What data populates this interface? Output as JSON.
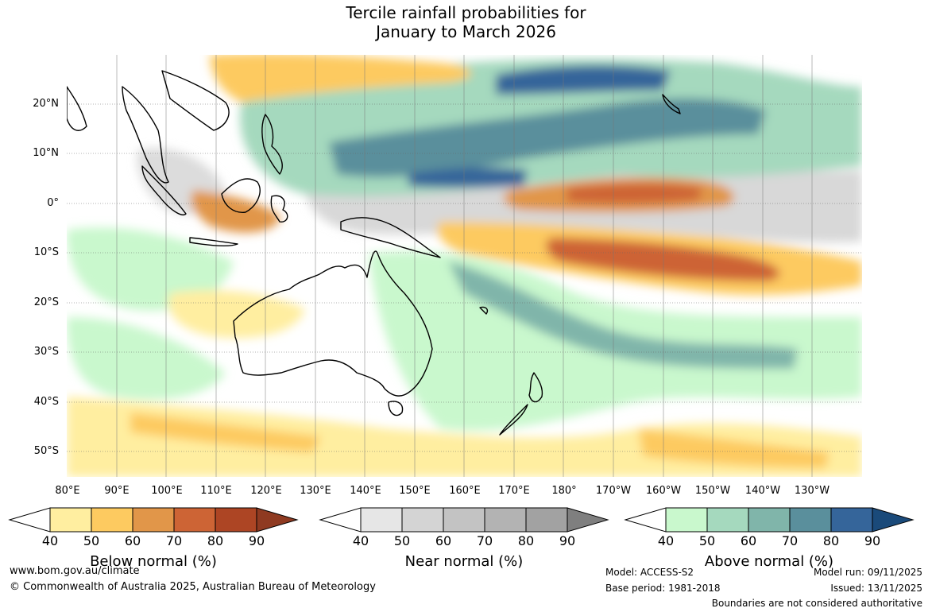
{
  "title": {
    "line1": "Tercile rainfall probabilities for",
    "line2": "January to March 2026"
  },
  "map": {
    "lat_labels": [
      "20°N",
      "10°N",
      "0°",
      "10°S",
      "20°S",
      "30°S",
      "40°S",
      "50°S"
    ],
    "lon_labels": [
      "80°E",
      "90°E",
      "100°E",
      "110°E",
      "120°E",
      "130°E",
      "140°E",
      "150°E",
      "160°E",
      "170°E",
      "180°",
      "170°W",
      "160°W",
      "150°W",
      "140°W",
      "130°W"
    ],
    "lat_range": [
      -55,
      30
    ],
    "lon_range": [
      80,
      240
    ]
  },
  "colorbars": {
    "below": {
      "title": "Below normal (%)",
      "ticks": [
        "40",
        "50",
        "60",
        "70",
        "80",
        "90"
      ],
      "colors": [
        "#ffeea0",
        "#fdca60",
        "#e19649",
        "#cd6435",
        "#ad4524"
      ],
      "over_color": "#8f3a21"
    },
    "near": {
      "title": "Near normal (%)",
      "ticks": [
        "40",
        "50",
        "60",
        "70",
        "80",
        "90"
      ],
      "colors": [
        "#e6e6e6",
        "#d4d4d4",
        "#c3c3c3",
        "#b3b3b3",
        "#a2a2a2"
      ],
      "over_color": "#7f7f7f"
    },
    "above": {
      "title": "Above normal (%)",
      "ticks": [
        "40",
        "50",
        "60",
        "70",
        "80",
        "90"
      ],
      "colors": [
        "#c9f8cd",
        "#a5d9be",
        "#80b5aa",
        "#5a8f9c",
        "#35659a"
      ],
      "over_color": "#1a4a7a"
    }
  },
  "footer": {
    "website": "www.bom.gov.au/climate",
    "copyright": "© Commonwealth of Australia 2025, Australian Bureau of Meteorology",
    "model": "Model: ACCESS-S2",
    "base_period": "Base period: 1981-2018",
    "model_run": "Model run: 09/11/2025",
    "issued": "Issued: 13/11/2025",
    "disclaimer": "Boundaries are not considered authoritative"
  }
}
